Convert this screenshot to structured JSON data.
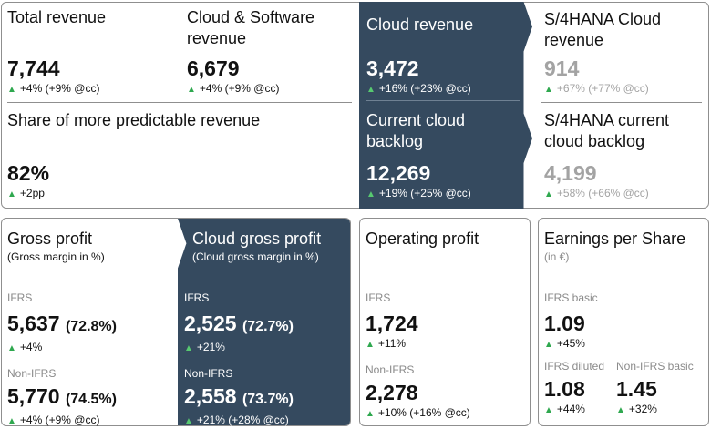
{
  "top": {
    "total_revenue": {
      "title": "Total revenue",
      "value": "7,744",
      "change": "+4% (+9% @cc)"
    },
    "cloud_software": {
      "title": "Cloud & Software revenue",
      "value": "6,679",
      "change": "+4% (+9% @cc)"
    },
    "cloud_revenue": {
      "title": "Cloud revenue",
      "value": "3,472",
      "change": "+16% (+23% @cc)"
    },
    "s4_cloud_revenue": {
      "title": "S/4HANA Cloud revenue",
      "value": "914",
      "change": "+67% (+77% @cc)"
    },
    "predictable": {
      "title": "Share of more predictable revenue",
      "value": "82%",
      "change": "+2pp"
    },
    "cloud_backlog": {
      "title": "Current cloud backlog",
      "value": "12,269",
      "change": "+19% (+25% @cc)"
    },
    "s4_backlog": {
      "title": "S/4HANA current cloud backlog",
      "value": "4,199",
      "change": "+58% (+66% @cc)"
    }
  },
  "gross_profit": {
    "title": "Gross profit",
    "subtitle": "(Gross margin in %)",
    "ifrs_label": "IFRS",
    "ifrs_value": "5,637",
    "ifrs_pct": "(72.8%)",
    "ifrs_change": "+4%",
    "nonifrs_label": "Non-IFRS",
    "nonifrs_value": "5,770",
    "nonifrs_pct": "(74.5%)",
    "nonifrs_change": "+4% (+9% @cc)"
  },
  "cloud_gross_profit": {
    "title": "Cloud gross profit",
    "subtitle": "(Cloud gross margin in %)",
    "ifrs_label": "IFRS",
    "ifrs_value": "2,525",
    "ifrs_pct": "(72.7%)",
    "ifrs_change": "+21%",
    "nonifrs_label": "Non-IFRS",
    "nonifrs_value": "2,558",
    "nonifrs_pct": "(73.7%)",
    "nonifrs_change": "+21% (+28% @cc)"
  },
  "operating_profit": {
    "title": "Operating profit",
    "ifrs_label": "IFRS",
    "ifrs_value": "1,724",
    "ifrs_change": "+11%",
    "nonifrs_label": "Non-IFRS",
    "nonifrs_value": "2,278",
    "nonifrs_change": "+10% (+16% @cc)"
  },
  "eps": {
    "title": "Earnings per Share",
    "subtitle": "(in €)",
    "basic_label": "IFRS basic",
    "basic_value": "1.09",
    "basic_change": "+45%",
    "diluted_label": "IFRS diluted",
    "diluted_value": "1.08",
    "diluted_change": "+44%",
    "nonifrs_label": "Non-IFRS basic",
    "nonifrs_value": "1.45",
    "nonifrs_change": "+32%"
  },
  "icons": {
    "up": "▲"
  },
  "colors": {
    "dark_panel": "#354a5f",
    "up_green": "#2fa84f",
    "muted": "#a3a3a3"
  }
}
